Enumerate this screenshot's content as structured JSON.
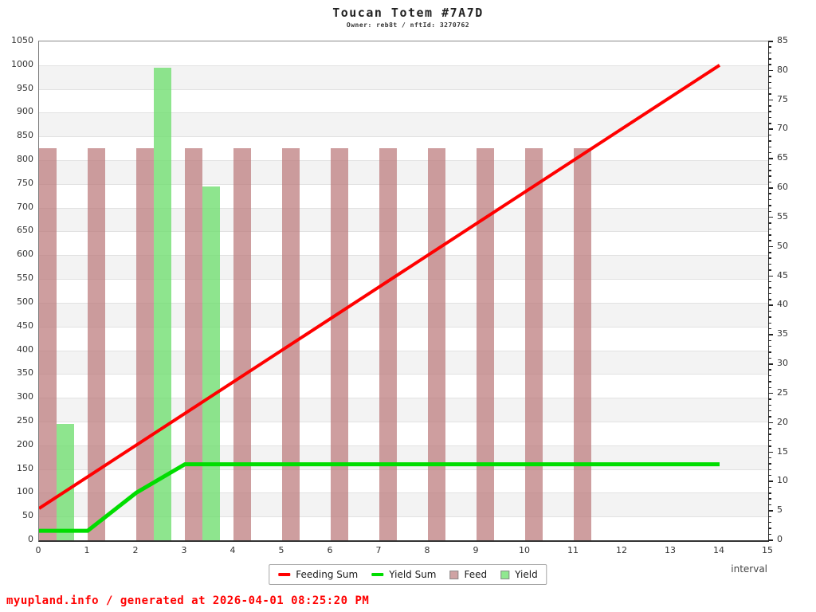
{
  "header": {
    "title": "Toucan Totem #7A7D",
    "subtitle": "Owner: reb8t / nftId: 3270762"
  },
  "footer": {
    "text": "myupland.info / generated at 2026-04-01 08:25:20 PM",
    "color": "#ff0000"
  },
  "chart_data": {
    "type": "mixed",
    "title": "Toucan Totem #7A7D",
    "subtitle": "Owner: reb8t / nftId: 3270762",
    "xlabel": "interval",
    "x_ticks": [
      0,
      1,
      2,
      3,
      4,
      5,
      6,
      7,
      8,
      9,
      10,
      11,
      12,
      13,
      14,
      15
    ],
    "x_range": [
      0,
      15
    ],
    "left_axis": {
      "min": 0,
      "max": 1050,
      "tick_step": 50,
      "ticks": [
        0,
        50,
        100,
        150,
        200,
        250,
        300,
        350,
        400,
        450,
        500,
        550,
        600,
        650,
        700,
        750,
        800,
        850,
        900,
        950,
        1000,
        1050
      ]
    },
    "right_axis": {
      "min": 0,
      "max": 85,
      "tick_step": 5,
      "minor_step": 1,
      "ticks": [
        0,
        5,
        10,
        15,
        20,
        25,
        30,
        35,
        40,
        45,
        50,
        55,
        60,
        65,
        70,
        75,
        80,
        85
      ]
    },
    "grid": true,
    "band_colors": [
      "#ffffff",
      "#f3f3f3"
    ],
    "legend_position": "bottom-center",
    "series": [
      {
        "name": "Feeding Sum",
        "kind": "line",
        "color": "#ff0000",
        "stroke_width": 4,
        "points": [
          [
            0,
            67
          ],
          [
            14,
            1000
          ]
        ]
      },
      {
        "name": "Yield Sum",
        "kind": "line",
        "color": "#00dd00",
        "stroke_width": 5,
        "points": [
          [
            0,
            20
          ],
          [
            1,
            20
          ],
          [
            2,
            100
          ],
          [
            3,
            160
          ],
          [
            14,
            160
          ]
        ]
      },
      {
        "name": "Feed",
        "kind": "bar",
        "color": "rgba(187,121,122,0.72)",
        "swatch": "#cfa3a4",
        "bar_slot": 0,
        "intervals": [
          0,
          1,
          2,
          3,
          4,
          5,
          6,
          7,
          8,
          9,
          10,
          11
        ],
        "values": [
          825,
          825,
          825,
          825,
          825,
          825,
          825,
          825,
          825,
          825,
          825,
          825
        ]
      },
      {
        "name": "Yield",
        "kind": "bar",
        "color": "rgba(110,222,110,0.78)",
        "swatch": "#90e890",
        "bar_slot": 1,
        "intervals": [
          0,
          2,
          3
        ],
        "values": [
          245,
          995,
          745
        ]
      }
    ]
  }
}
